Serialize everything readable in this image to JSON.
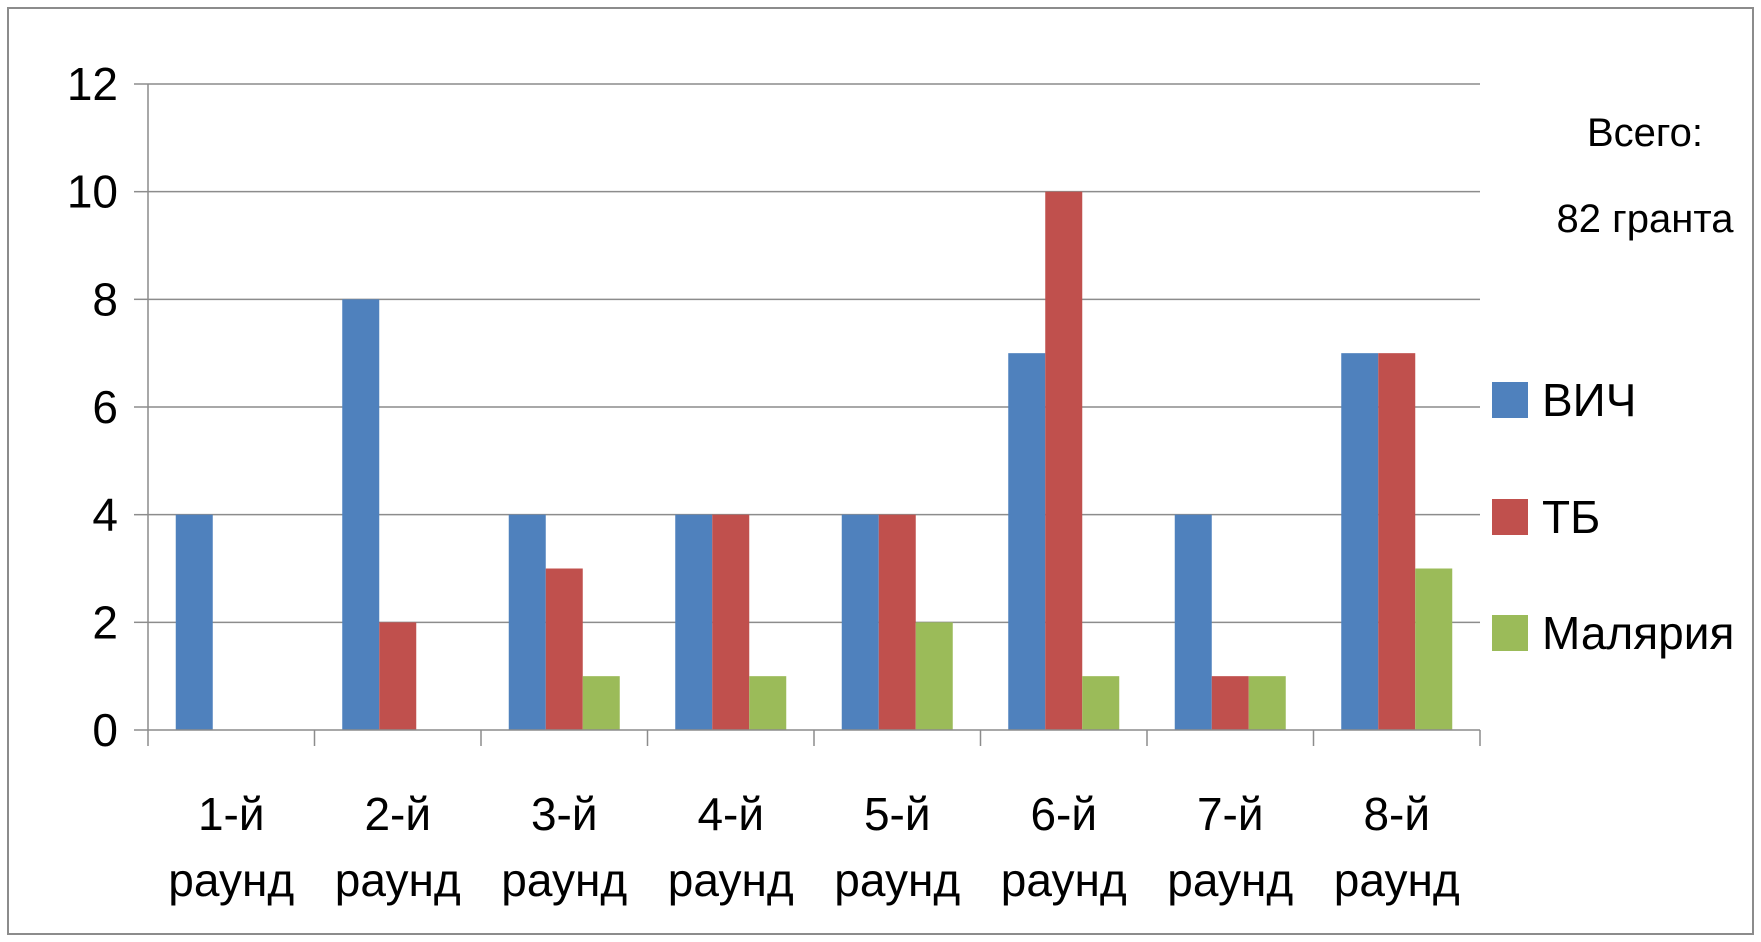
{
  "chart_data": {
    "type": "bar",
    "categories": [
      [
        "1-й",
        "раунд"
      ],
      [
        "2-й",
        "раунд"
      ],
      [
        "3-й",
        "раунд"
      ],
      [
        "4-й",
        "раунд"
      ],
      [
        "5-й",
        "раунд"
      ],
      [
        "6-й",
        "раунд"
      ],
      [
        "7-й",
        "раунд"
      ],
      [
        "8-й",
        "раунд"
      ]
    ],
    "series": [
      {
        "name": "ВИЧ",
        "color": "#4F81BD",
        "values": [
          4,
          8,
          4,
          4,
          4,
          7,
          4,
          7
        ]
      },
      {
        "name": "ТБ",
        "color": "#C0504D",
        "values": [
          0,
          2,
          3,
          4,
          4,
          10,
          1,
          7
        ]
      },
      {
        "name": "Малярия",
        "color": "#9BBB59",
        "values": [
          0,
          0,
          1,
          1,
          2,
          1,
          1,
          3
        ]
      }
    ],
    "ylim": [
      0,
      12
    ],
    "yticks": [
      0,
      2,
      4,
      6,
      8,
      10,
      12
    ],
    "grid": true,
    "legend_position": "right",
    "title": "",
    "xlabel": "",
    "ylabel": "",
    "annotation": {
      "line1": "Всего:",
      "line2": "82 гранта"
    }
  }
}
